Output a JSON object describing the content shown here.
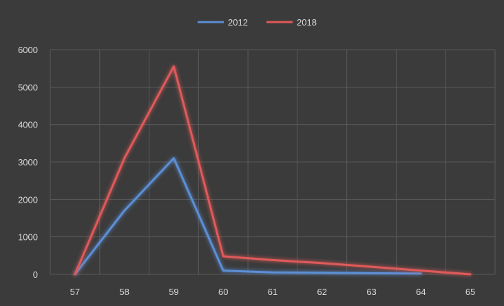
{
  "chart_data": {
    "type": "line",
    "title": "",
    "xlabel": "",
    "ylabel": "",
    "x": [
      57,
      58,
      59,
      60,
      61,
      62,
      63,
      64,
      65
    ],
    "ylim": [
      0,
      6000
    ],
    "yticks": [
      0,
      1000,
      2000,
      3000,
      4000,
      5000,
      6000
    ],
    "grid": true,
    "legend": "top-center",
    "series": [
      {
        "name": "2012",
        "color": "#5b8fd6",
        "values": [
          0,
          1700,
          3100,
          100,
          50,
          40,
          30,
          20,
          null
        ]
      },
      {
        "name": "2018",
        "color": "#e05a5a",
        "values": [
          0,
          3100,
          5550,
          480,
          380,
          300,
          200,
          100,
          0
        ]
      }
    ]
  }
}
